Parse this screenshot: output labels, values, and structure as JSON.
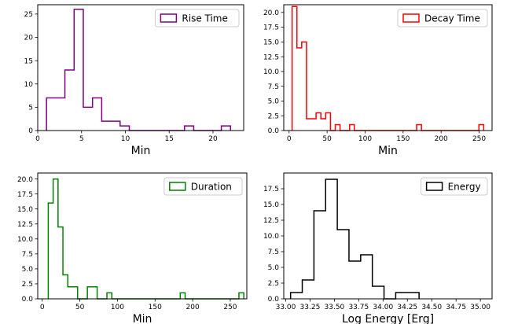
{
  "chart_data": [
    {
      "type": "histogram",
      "xlabel": "Min",
      "legend": "Rise Time",
      "legend_position": "top-right",
      "color": "#800080",
      "xlim": [
        0,
        23.5
      ],
      "ylim": [
        0,
        27
      ],
      "xticks": [
        0,
        5,
        10,
        15,
        20
      ],
      "yticks": [
        0,
        5,
        10,
        15,
        20,
        25
      ],
      "ytick_format": 0,
      "bins_start": 1.0,
      "bin_width": 1.05,
      "counts": [
        7,
        7,
        13,
        26,
        5,
        7,
        2,
        2,
        1,
        0,
        0,
        0,
        0,
        0,
        0,
        1,
        0,
        0,
        0,
        1
      ]
    },
    {
      "type": "histogram",
      "xlabel": "Min",
      "legend": "Decay Time",
      "legend_position": "top-right",
      "color": "#ff0000",
      "xlim": [
        -7,
        267
      ],
      "ylim": [
        0,
        21.3
      ],
      "xticks": [
        0,
        50,
        100,
        150,
        200,
        250
      ],
      "yticks": [
        0,
        2.5,
        5,
        7.5,
        10,
        12.5,
        15,
        17.5,
        20
      ],
      "ytick_format": 1,
      "bins_start": 4.0,
      "bin_width": 6.3,
      "counts": [
        21,
        14,
        15,
        2,
        2,
        3,
        2,
        3,
        0,
        1,
        0,
        0,
        1,
        0,
        0,
        0,
        0,
        0,
        0,
        0,
        0,
        0,
        0,
        0,
        0,
        0,
        1,
        0,
        0,
        0,
        0,
        0,
        0,
        0,
        0,
        0,
        0,
        0,
        0,
        1
      ]
    },
    {
      "type": "histogram",
      "xlabel": "Min",
      "legend": "Duration",
      "legend_position": "top-right",
      "color": "#008000",
      "xlim": [
        -6,
        272
      ],
      "ylim": [
        0,
        21
      ],
      "xticks": [
        0,
        50,
        100,
        150,
        200,
        250
      ],
      "yticks": [
        0,
        2.5,
        5,
        7.5,
        10,
        12.5,
        15,
        17.5,
        20
      ],
      "ytick_format": 1,
      "bins_start": 8.0,
      "bin_width": 6.5,
      "counts": [
        16,
        20,
        12,
        4,
        2,
        2,
        0,
        0,
        2,
        2,
        0,
        0,
        1,
        0,
        0,
        0,
        0,
        0,
        0,
        0,
        0,
        0,
        0,
        0,
        0,
        0,
        0,
        1,
        0,
        0,
        0,
        0,
        0,
        0,
        0,
        0,
        0,
        0,
        0,
        1
      ]
    },
    {
      "type": "histogram",
      "xlabel": "Log Energy [Erg]",
      "legend": "Energy",
      "legend_position": "top-right",
      "color": "#000000",
      "xlim": [
        32.98,
        35.12
      ],
      "ylim": [
        0,
        20
      ],
      "xticks": [
        33.0,
        33.25,
        33.5,
        33.75,
        34.0,
        34.25,
        34.5,
        34.75,
        35.0
      ],
      "yticks": [
        0,
        2.5,
        5,
        7.5,
        10,
        12.5,
        15,
        17.5
      ],
      "ytick_format": 1,
      "xtick_format": 2,
      "bins_start": 33.05,
      "bin_width": 0.12,
      "counts": [
        1,
        3,
        14,
        19,
        11,
        6,
        7,
        2,
        0,
        1,
        1
      ]
    }
  ]
}
